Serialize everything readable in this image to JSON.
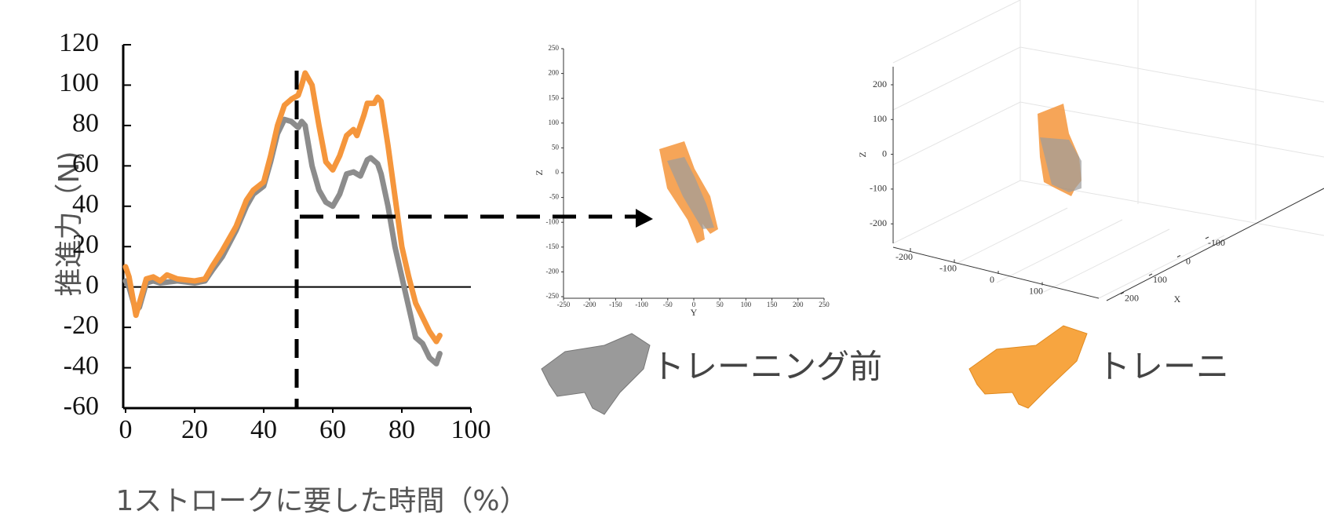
{
  "chart_data": {
    "type": "line",
    "ylabel": "推進力（N)",
    "xlabel": "1ストロークに要した時間（%）",
    "xlim": [
      0,
      100
    ],
    "xticks": [
      0,
      20,
      40,
      60,
      80,
      100
    ],
    "ylim": [
      -60,
      120
    ],
    "yticks": [
      -60,
      -40,
      -20,
      0,
      20,
      40,
      60,
      80,
      100,
      120
    ],
    "series": [
      {
        "name": "トレーニング前",
        "color": "#8c8c8c",
        "x": [
          0,
          1,
          3,
          4,
          6,
          8,
          10,
          15,
          20,
          23,
          25,
          28,
          32,
          35,
          37,
          40,
          42,
          44,
          46,
          48,
          50,
          51,
          52,
          54,
          56,
          58,
          60,
          62,
          64,
          66,
          68,
          70,
          71,
          73,
          74,
          76,
          78,
          80,
          82,
          84,
          86,
          88,
          90,
          91
        ],
        "values": [
          3,
          0,
          -12,
          -10,
          2,
          3,
          2,
          3,
          2,
          3,
          8,
          15,
          28,
          40,
          46,
          50,
          62,
          76,
          83,
          82,
          79,
          82,
          80,
          60,
          48,
          42,
          40,
          46,
          56,
          57,
          55,
          63,
          64,
          61,
          56,
          40,
          20,
          5,
          -10,
          -25,
          -28,
          -35,
          -38,
          -33
        ]
      },
      {
        "name": "トレーニ",
        "color": "#f5963c",
        "x": [
          0,
          1,
          3,
          4,
          6,
          8,
          10,
          12,
          15,
          20,
          23,
          25,
          28,
          32,
          35,
          37,
          40,
          42,
          44,
          46,
          48,
          50,
          51,
          52,
          54,
          56,
          58,
          60,
          62,
          64,
          66,
          67,
          69,
          70,
          72,
          73,
          74,
          76,
          78,
          80,
          82,
          84,
          86,
          88,
          90,
          91
        ],
        "values": [
          10,
          5,
          -14,
          -8,
          4,
          5,
          3,
          6,
          4,
          3,
          4,
          10,
          18,
          30,
          43,
          48,
          52,
          65,
          80,
          90,
          93,
          95,
          100,
          106,
          100,
          80,
          62,
          58,
          65,
          75,
          78,
          75,
          85,
          91,
          91,
          94,
          92,
          70,
          45,
          20,
          5,
          -8,
          -15,
          -22,
          -27,
          -24
        ]
      }
    ]
  },
  "insets": [
    {
      "yticks": [
        250,
        200,
        150,
        100,
        50,
        0,
        -50,
        -100,
        -150,
        -200,
        -250
      ],
      "xticks": [
        -250,
        -200,
        -150,
        -100,
        -50,
        0,
        50,
        100,
        150,
        200,
        250
      ],
      "ylabel": "Z",
      "xlabel": "Y"
    },
    {
      "zticks": [
        200,
        100,
        0,
        -100,
        -200
      ],
      "yticks": [
        -200,
        -100,
        0,
        100
      ],
      "xticks": [
        -100,
        0,
        100,
        200
      ],
      "zlabel": "Z",
      "xlabel": "X"
    }
  ]
}
